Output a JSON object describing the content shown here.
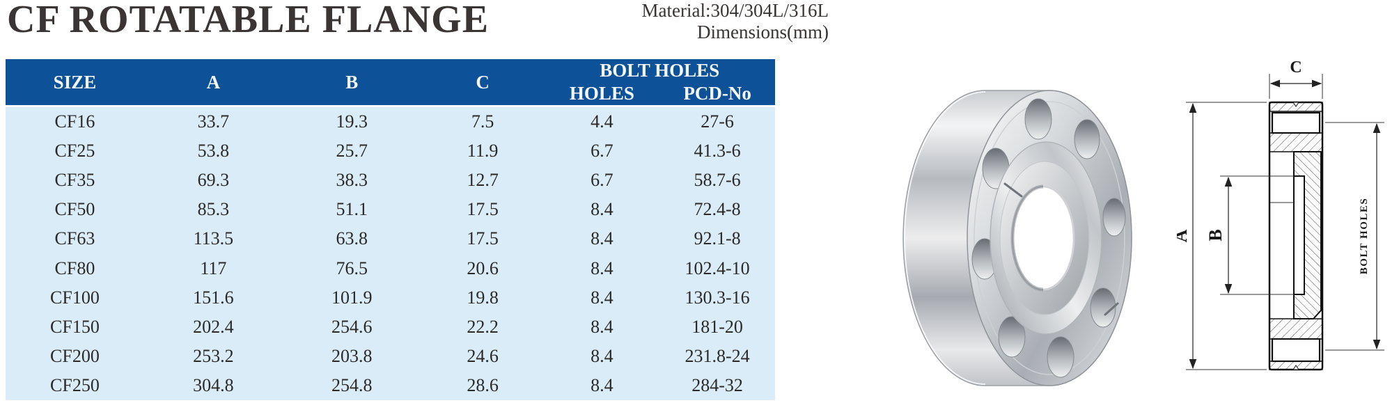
{
  "page": {
    "title": "CF ROTATABLE FLANGE",
    "material_note": "Material:304/304L/316L",
    "dimensions_note": "Dimensions(mm)"
  },
  "colors": {
    "header_blue": "#0D5299",
    "body_blue": "#D9ECF8",
    "title_color": "#3A3432"
  },
  "table": {
    "headers": {
      "size": "SIZE",
      "a": "A",
      "b": "B",
      "c": "C",
      "bolt_holes_group": "BOLT HOLES",
      "holes": "HOLES",
      "pcd": "PCD-No"
    },
    "rows": [
      {
        "size": "CF16",
        "a": "33.7",
        "b": "19.3",
        "c": "7.5",
        "holes": "4.4",
        "pcd": "27-6"
      },
      {
        "size": "CF25",
        "a": "53.8",
        "b": "25.7",
        "c": "11.9",
        "holes": "6.7",
        "pcd": "41.3-6"
      },
      {
        "size": "CF35",
        "a": "69.3",
        "b": "38.3",
        "c": "12.7",
        "holes": "6.7",
        "pcd": "58.7-6"
      },
      {
        "size": "CF50",
        "a": "85.3",
        "b": "51.1",
        "c": "17.5",
        "holes": "8.4",
        "pcd": "72.4-8"
      },
      {
        "size": "CF63",
        "a": "113.5",
        "b": "63.8",
        "c": "17.5",
        "holes": "8.4",
        "pcd": "92.1-8"
      },
      {
        "size": "CF80",
        "a": "117",
        "b": "76.5",
        "c": "20.6",
        "holes": "8.4",
        "pcd": "102.4-10"
      },
      {
        "size": "CF100",
        "a": "151.6",
        "b": "101.9",
        "c": "19.8",
        "holes": "8.4",
        "pcd": "130.3-16"
      },
      {
        "size": "CF150",
        "a": "202.4",
        "b": "254.6",
        "c": "22.2",
        "holes": "8.4",
        "pcd": "181-20"
      },
      {
        "size": "CF200",
        "a": "253.2",
        "b": "203.8",
        "c": "24.6",
        "holes": "8.4",
        "pcd": "231.8-24"
      },
      {
        "size": "CF250",
        "a": "304.8",
        "b": "254.8",
        "c": "28.6",
        "holes": "8.4",
        "pcd": "284-32"
      }
    ]
  },
  "drawing": {
    "labels": {
      "a": "A",
      "b": "B",
      "c": "C",
      "bolt_holes": "BOLT HOLES"
    }
  }
}
